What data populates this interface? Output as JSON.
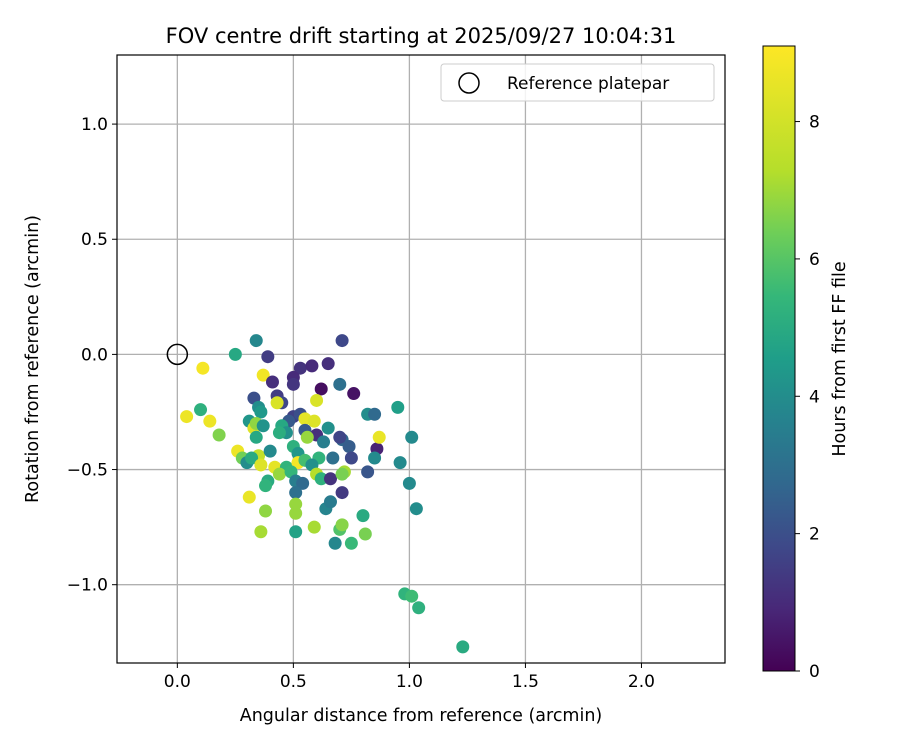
{
  "chart_data": {
    "type": "scatter",
    "title": "FOV centre drift starting at 2025/09/27 10:04:31",
    "xlabel": "Angular distance from reference (arcmin)",
    "ylabel": "Rotation from reference (arcmin)",
    "xlim": [
      -0.26,
      2.36
    ],
    "ylim": [
      -1.34,
      1.3
    ],
    "xticks": [
      0.0,
      0.5,
      1.0,
      1.5,
      2.0
    ],
    "xtick_labels": [
      "0.0",
      "0.5",
      "1.0",
      "1.5",
      "2.0"
    ],
    "yticks": [
      1.0,
      0.5,
      0.0,
      -0.5,
      -1.0
    ],
    "ytick_labels": [
      "1.0",
      "0.5",
      "0.0",
      "−0.5",
      "−1.0"
    ],
    "grid": true,
    "legend": {
      "position": "top-right",
      "entries": [
        "Reference platepar"
      ]
    },
    "reference_point": {
      "x": 0.0,
      "y": 0.0,
      "label": "Reference platepar"
    },
    "colorbar": {
      "label": "Hours from first FF file",
      "min": 0,
      "max": 9.1,
      "ticks": [
        0,
        2,
        4,
        6,
        8
      ],
      "tick_labels": [
        "0",
        "2",
        "4",
        "6",
        "8"
      ],
      "colormap": "viridis"
    },
    "series": [
      {
        "name": "FOV centre drift",
        "points": [
          {
            "x": 0.34,
            "y": 0.06,
            "h": 3.8
          },
          {
            "x": 0.25,
            "y": 0.0,
            "h": 4.9
          },
          {
            "x": 0.39,
            "y": -0.01,
            "h": 1.5
          },
          {
            "x": 0.71,
            "y": 0.06,
            "h": 1.8
          },
          {
            "x": 0.11,
            "y": -0.06,
            "h": 8.9
          },
          {
            "x": 0.53,
            "y": -0.06,
            "h": 1.2
          },
          {
            "x": 0.58,
            "y": -0.05,
            "h": 1.0
          },
          {
            "x": 0.65,
            "y": -0.04,
            "h": 1.1
          },
          {
            "x": 0.5,
            "y": -0.1,
            "h": 1.0
          },
          {
            "x": 0.37,
            "y": -0.09,
            "h": 8.8
          },
          {
            "x": 0.41,
            "y": -0.12,
            "h": 1.1
          },
          {
            "x": 0.5,
            "y": -0.13,
            "h": 1.3
          },
          {
            "x": 0.62,
            "y": -0.15,
            "h": 0.3
          },
          {
            "x": 0.7,
            "y": -0.13,
            "h": 3.0
          },
          {
            "x": 0.76,
            "y": -0.17,
            "h": 0.4
          },
          {
            "x": 0.33,
            "y": -0.19,
            "h": 2.0
          },
          {
            "x": 0.43,
            "y": -0.18,
            "h": 1.5
          },
          {
            "x": 0.45,
            "y": -0.21,
            "h": 1.8
          },
          {
            "x": 0.43,
            "y": -0.21,
            "h": 8.2
          },
          {
            "x": 0.6,
            "y": -0.2,
            "h": 8.2
          },
          {
            "x": 0.35,
            "y": -0.23,
            "h": 4.0
          },
          {
            "x": 0.36,
            "y": -0.25,
            "h": 4.4
          },
          {
            "x": 0.04,
            "y": -0.27,
            "h": 8.7
          },
          {
            "x": 0.1,
            "y": -0.24,
            "h": 5.2
          },
          {
            "x": 0.14,
            "y": -0.29,
            "h": 8.7
          },
          {
            "x": 0.5,
            "y": -0.27,
            "h": 1.6
          },
          {
            "x": 0.53,
            "y": -0.26,
            "h": 2.0
          },
          {
            "x": 0.55,
            "y": -0.28,
            "h": 8.5
          },
          {
            "x": 0.59,
            "y": -0.29,
            "h": 8.3
          },
          {
            "x": 0.48,
            "y": -0.29,
            "h": 2.3
          },
          {
            "x": 0.82,
            "y": -0.26,
            "h": 4.0
          },
          {
            "x": 0.85,
            "y": -0.26,
            "h": 2.8
          },
          {
            "x": 0.95,
            "y": -0.23,
            "h": 4.6
          },
          {
            "x": 0.31,
            "y": -0.29,
            "h": 4.3
          },
          {
            "x": 0.33,
            "y": -0.32,
            "h": 8.3
          },
          {
            "x": 0.34,
            "y": -0.3,
            "h": 6.8
          },
          {
            "x": 0.37,
            "y": -0.31,
            "h": 4.2
          },
          {
            "x": 0.45,
            "y": -0.31,
            "h": 4.9
          },
          {
            "x": 0.47,
            "y": -0.34,
            "h": 4.1
          },
          {
            "x": 0.18,
            "y": -0.35,
            "h": 6.6
          },
          {
            "x": 0.34,
            "y": -0.36,
            "h": 4.9
          },
          {
            "x": 0.55,
            "y": -0.33,
            "h": 2.3
          },
          {
            "x": 0.6,
            "y": -0.35,
            "h": 1.1
          },
          {
            "x": 0.65,
            "y": -0.32,
            "h": 4.1
          },
          {
            "x": 0.71,
            "y": -0.37,
            "h": 2.7
          },
          {
            "x": 0.7,
            "y": -0.36,
            "h": 1.7
          },
          {
            "x": 0.56,
            "y": -0.36,
            "h": 6.9
          },
          {
            "x": 0.44,
            "y": -0.34,
            "h": 5.1
          },
          {
            "x": 0.63,
            "y": -0.38,
            "h": 3.5
          },
          {
            "x": 0.74,
            "y": -0.4,
            "h": 2.4
          },
          {
            "x": 0.86,
            "y": -0.41,
            "h": 0.8
          },
          {
            "x": 0.87,
            "y": -0.36,
            "h": 8.6
          },
          {
            "x": 1.01,
            "y": -0.36,
            "h": 3.9
          },
          {
            "x": 0.26,
            "y": -0.42,
            "h": 8.7
          },
          {
            "x": 0.35,
            "y": -0.44,
            "h": 7.6
          },
          {
            "x": 0.4,
            "y": -0.42,
            "h": 3.9
          },
          {
            "x": 0.5,
            "y": -0.4,
            "h": 5.2
          },
          {
            "x": 0.52,
            "y": -0.43,
            "h": 4.3
          },
          {
            "x": 0.61,
            "y": -0.45,
            "h": 5.3
          },
          {
            "x": 0.67,
            "y": -0.45,
            "h": 3.0
          },
          {
            "x": 0.75,
            "y": -0.45,
            "h": 1.8
          },
          {
            "x": 0.85,
            "y": -0.45,
            "h": 3.9
          },
          {
            "x": 0.28,
            "y": -0.45,
            "h": 6.4
          },
          {
            "x": 0.3,
            "y": -0.47,
            "h": 4.0
          },
          {
            "x": 0.32,
            "y": -0.45,
            "h": 5.0
          },
          {
            "x": 0.36,
            "y": -0.48,
            "h": 8.3
          },
          {
            "x": 0.42,
            "y": -0.49,
            "h": 8.5
          },
          {
            "x": 0.47,
            "y": -0.49,
            "h": 5.3
          },
          {
            "x": 0.52,
            "y": -0.47,
            "h": 8.9
          },
          {
            "x": 0.55,
            "y": -0.46,
            "h": 5.7
          },
          {
            "x": 0.58,
            "y": -0.48,
            "h": 4.1
          },
          {
            "x": 0.96,
            "y": -0.47,
            "h": 3.9
          },
          {
            "x": 0.44,
            "y": -0.52,
            "h": 6.9
          },
          {
            "x": 0.49,
            "y": -0.51,
            "h": 5.4
          },
          {
            "x": 0.6,
            "y": -0.52,
            "h": 7.3
          },
          {
            "x": 0.62,
            "y": -0.54,
            "h": 5.2
          },
          {
            "x": 0.66,
            "y": -0.54,
            "h": 1.2
          },
          {
            "x": 0.72,
            "y": -0.51,
            "h": 7.1
          },
          {
            "x": 0.71,
            "y": -0.52,
            "h": 6.5
          },
          {
            "x": 0.82,
            "y": -0.51,
            "h": 2.2
          },
          {
            "x": 0.39,
            "y": -0.55,
            "h": 5.0
          },
          {
            "x": 0.38,
            "y": -0.57,
            "h": 5.3
          },
          {
            "x": 0.51,
            "y": -0.55,
            "h": 3.5
          },
          {
            "x": 0.54,
            "y": -0.56,
            "h": 2.8
          },
          {
            "x": 0.51,
            "y": -0.6,
            "h": 3.0
          },
          {
            "x": 0.71,
            "y": -0.6,
            "h": 1.4
          },
          {
            "x": 1.0,
            "y": -0.56,
            "h": 3.9
          },
          {
            "x": 0.31,
            "y": -0.62,
            "h": 8.6
          },
          {
            "x": 0.51,
            "y": -0.65,
            "h": 6.9
          },
          {
            "x": 0.64,
            "y": -0.67,
            "h": 3.7
          },
          {
            "x": 0.66,
            "y": -0.64,
            "h": 3.4
          },
          {
            "x": 0.38,
            "y": -0.68,
            "h": 6.8
          },
          {
            "x": 0.51,
            "y": -0.69,
            "h": 6.9
          },
          {
            "x": 0.8,
            "y": -0.7,
            "h": 5.0
          },
          {
            "x": 1.03,
            "y": -0.67,
            "h": 4.0
          },
          {
            "x": 0.36,
            "y": -0.77,
            "h": 7.1
          },
          {
            "x": 0.51,
            "y": -0.77,
            "h": 4.7
          },
          {
            "x": 0.59,
            "y": -0.75,
            "h": 7.1
          },
          {
            "x": 0.7,
            "y": -0.76,
            "h": 5.9
          },
          {
            "x": 0.71,
            "y": -0.74,
            "h": 6.7
          },
          {
            "x": 0.81,
            "y": -0.78,
            "h": 6.5
          },
          {
            "x": 0.68,
            "y": -0.82,
            "h": 3.8
          },
          {
            "x": 0.75,
            "y": -0.82,
            "h": 5.5
          },
          {
            "x": 0.98,
            "y": -1.04,
            "h": 5.3
          },
          {
            "x": 1.01,
            "y": -1.05,
            "h": 5.6
          },
          {
            "x": 1.04,
            "y": -1.1,
            "h": 5.2
          },
          {
            "x": 1.23,
            "y": -1.27,
            "h": 5.0
          }
        ]
      }
    ]
  }
}
